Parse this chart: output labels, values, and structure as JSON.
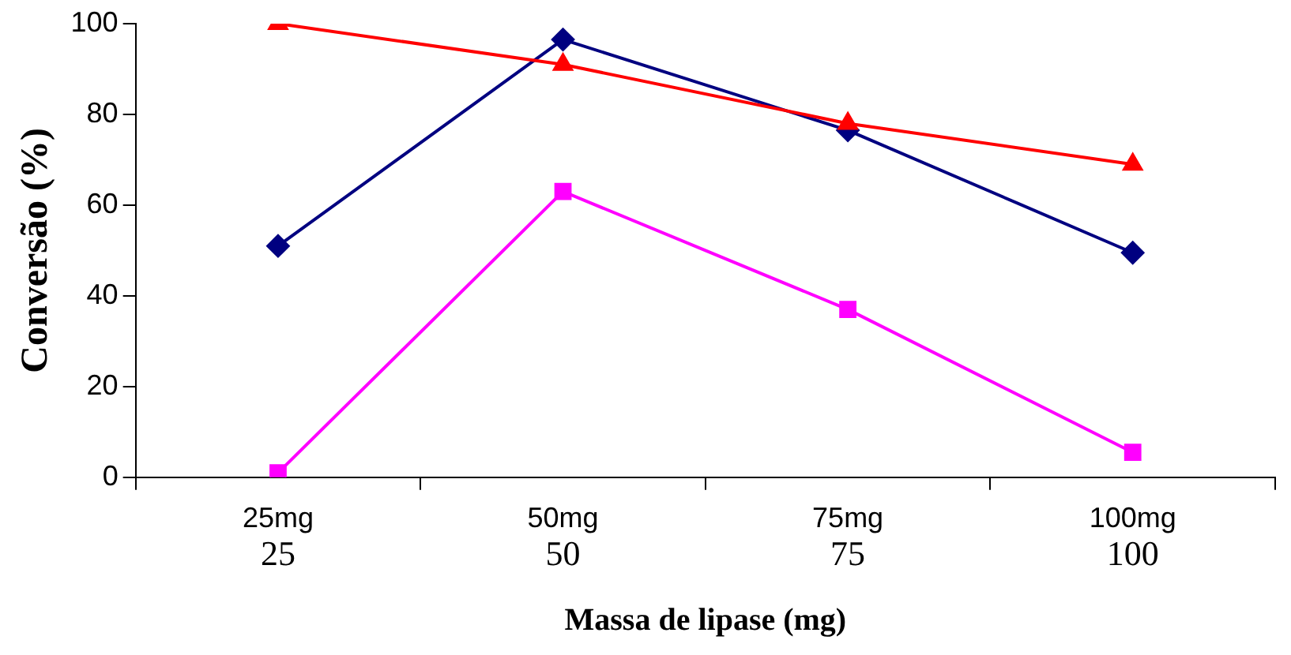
{
  "chart_data": {
    "type": "line",
    "xlabel": "Massa de lipase (mg)",
    "ylabel": "Conversão (%)",
    "categories": [
      "25mg",
      "50mg",
      "75mg",
      "100mg"
    ],
    "series": [
      {
        "color": "#000080",
        "marker": "diamond",
        "values": [
          51,
          96.5,
          76.5,
          49.5
        ]
      },
      {
        "color": "#ff00ff",
        "marker": "square",
        "values": [
          1,
          63,
          37,
          5.5
        ]
      },
      {
        "color": "#ff0000",
        "marker": "triangle",
        "values": [
          100,
          91,
          78,
          69
        ]
      }
    ],
    "ylim": [
      0,
      100
    ],
    "yticks": [
      0,
      20,
      40,
      60,
      80,
      100
    ],
    "grid": false,
    "legend": false,
    "annotations": [
      "25",
      "50",
      "75",
      "100"
    ]
  }
}
